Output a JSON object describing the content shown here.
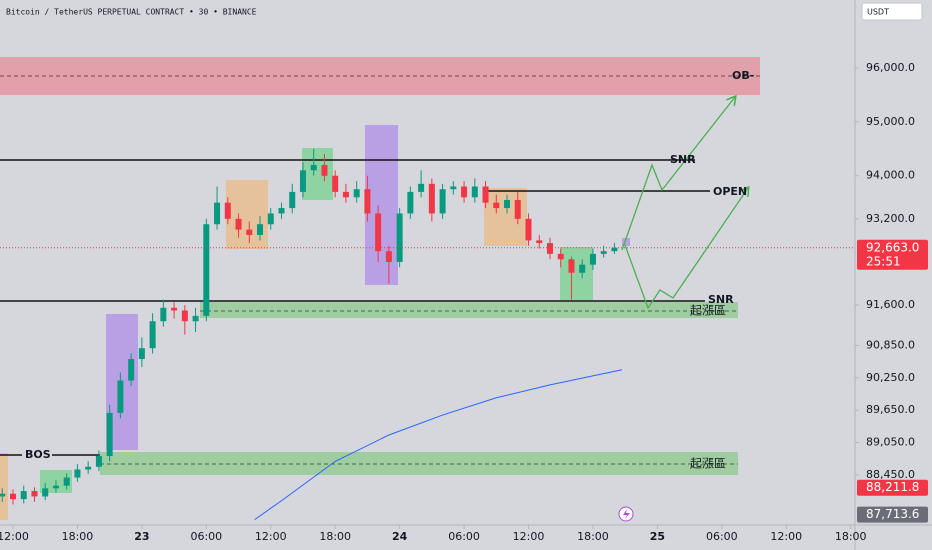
{
  "header": {
    "title": "Bitcoin / TetherUS PERPETUAL CONTRACT • 30 • BINANCE",
    "currency_button": "USDT"
  },
  "annotations": {
    "ob": "OB-",
    "snr_top": "SNR",
    "open": "OPEN",
    "snr_bottom": "SNR",
    "zone_upper": "起漲區",
    "zone_lower": "起漲區",
    "bos": "BOS"
  },
  "chart_data": {
    "type": "candlestick",
    "title": "Bitcoin / TetherUS PERPETUAL CONTRACT • 30 • BINANCE",
    "up_color": "#089981",
    "down_color": "#f23645",
    "x": [
      -1,
      0,
      1,
      2,
      3,
      4,
      5,
      6,
      7,
      8,
      9,
      10,
      11,
      12,
      13,
      14,
      15,
      16,
      17,
      18,
      19,
      20,
      21,
      22,
      23,
      24,
      25,
      26,
      27,
      28,
      29,
      30,
      31,
      32,
      33,
      34,
      35,
      36,
      37,
      38,
      39,
      40,
      41,
      42,
      43,
      44,
      45,
      46,
      47,
      48,
      49,
      50,
      51,
      52,
      53,
      54,
      55,
      56
    ],
    "open": [
      88050,
      88100,
      88000,
      88150,
      88050,
      88200,
      88250,
      88400,
      88550,
      88600,
      88800,
      89600,
      90200,
      90600,
      90800,
      91300,
      91550,
      91500,
      91300,
      91400,
      93100,
      93500,
      93200,
      93000,
      92900,
      93100,
      93300,
      93400,
      93700,
      94100,
      94200,
      94000,
      93700,
      93600,
      93750,
      93300,
      92600,
      92400,
      93300,
      93700,
      93850,
      93300,
      93750,
      93800,
      93600,
      93800,
      93500,
      93400,
      93550,
      93200,
      92800,
      92750,
      92550,
      92450,
      92200,
      92350,
      92550,
      92600
    ],
    "high": [
      88200,
      88180,
      88250,
      88220,
      88300,
      88350,
      88480,
      88650,
      88700,
      88900,
      89750,
      90350,
      90700,
      91000,
      91450,
      91700,
      91650,
      91600,
      91550,
      93200,
      93800,
      93600,
      93300,
      93150,
      93250,
      93400,
      93500,
      93850,
      94250,
      94500,
      94400,
      94100,
      93850,
      93900,
      94000,
      93450,
      92700,
      93400,
      93800,
      94100,
      93950,
      93850,
      93900,
      93900,
      93950,
      93900,
      93650,
      93650,
      93700,
      93300,
      92900,
      92850,
      92650,
      92500,
      92450,
      92650,
      92700,
      92750
    ],
    "low": [
      87950,
      87900,
      87920,
      87950,
      87980,
      88120,
      88180,
      88320,
      88470,
      88520,
      88700,
      89500,
      90100,
      90450,
      90700,
      91200,
      91350,
      91050,
      91100,
      91300,
      93000,
      93100,
      92850,
      92750,
      92800,
      93000,
      93200,
      93300,
      93600,
      94000,
      93900,
      93600,
      93500,
      93500,
      93150,
      92400,
      92000,
      92300,
      93200,
      93600,
      93150,
      93200,
      93650,
      93500,
      93500,
      93400,
      93300,
      93300,
      93100,
      92700,
      92650,
      92450,
      92300,
      91700,
      92100,
      92250,
      92480,
      92550
    ],
    "close": [
      88100,
      88000,
      88150,
      88050,
      88200,
      88250,
      88400,
      88550,
      88600,
      88800,
      89600,
      90200,
      90600,
      90800,
      91300,
      91550,
      91500,
      91300,
      91400,
      93100,
      93500,
      93200,
      93000,
      92900,
      93100,
      93300,
      93400,
      93700,
      94100,
      94200,
      94000,
      93700,
      93600,
      93750,
      93300,
      92600,
      92400,
      93300,
      93700,
      93850,
      93300,
      93750,
      93800,
      93600,
      93800,
      93500,
      93400,
      93550,
      93200,
      92800,
      92750,
      92550,
      92450,
      92200,
      92350,
      92550,
      92600,
      92663
    ],
    "moving_average": {
      "color": "#2962ff",
      "x": [
        22.5,
        25,
        30,
        35,
        40,
        45,
        50,
        56.7
      ],
      "values": [
        87620,
        87970,
        88700,
        89190,
        89560,
        89880,
        90120,
        90400
      ]
    },
    "xlim": [
      -1.21,
      78.4
    ],
    "ylim": [
      87520,
      97260
    ],
    "xticks": [
      {
        "value": 0,
        "label": "12:00"
      },
      {
        "value": 6,
        "label": "18:00"
      },
      {
        "value": 12,
        "label": "23"
      },
      {
        "value": 18,
        "label": "06:00"
      },
      {
        "value": 24,
        "label": "12:00"
      },
      {
        "value": 30,
        "label": "18:00"
      },
      {
        "value": 36,
        "label": "24"
      },
      {
        "value": 42,
        "label": "06:00"
      },
      {
        "value": 48,
        "label": "12:00"
      },
      {
        "value": 54,
        "label": "18:00"
      },
      {
        "value": 60,
        "label": "25"
      },
      {
        "value": 66,
        "label": "06:00"
      },
      {
        "value": 72,
        "label": "12:00"
      },
      {
        "value": 78,
        "label": "18:00"
      }
    ],
    "yticks": [
      {
        "value": 96000,
        "label": "96,000.0"
      },
      {
        "value": 95000,
        "label": "95,000.0"
      },
      {
        "value": 94000,
        "label": "94,000.0"
      },
      {
        "value": 93200,
        "label": "93,200.0"
      },
      {
        "value": 91600,
        "label": "91,600.0"
      },
      {
        "value": 90850,
        "label": "90,850.0"
      },
      {
        "value": 90250,
        "label": "90,250.0"
      },
      {
        "value": 89650,
        "label": "89,650.0"
      },
      {
        "value": 89050,
        "label": "89,050.0"
      },
      {
        "value": 88450,
        "label": "88,450.0"
      }
    ],
    "grid": false,
    "price_badges": [
      {
        "value": 92663,
        "label": "92,663.0",
        "countdown": "25:51",
        "color": "#f23645"
      },
      {
        "value": 88211.8,
        "label": "88,211.8",
        "color": "#f23645"
      },
      {
        "value": 87713.6,
        "label": "87,713.6",
        "color": "#6a6d78"
      }
    ]
  }
}
